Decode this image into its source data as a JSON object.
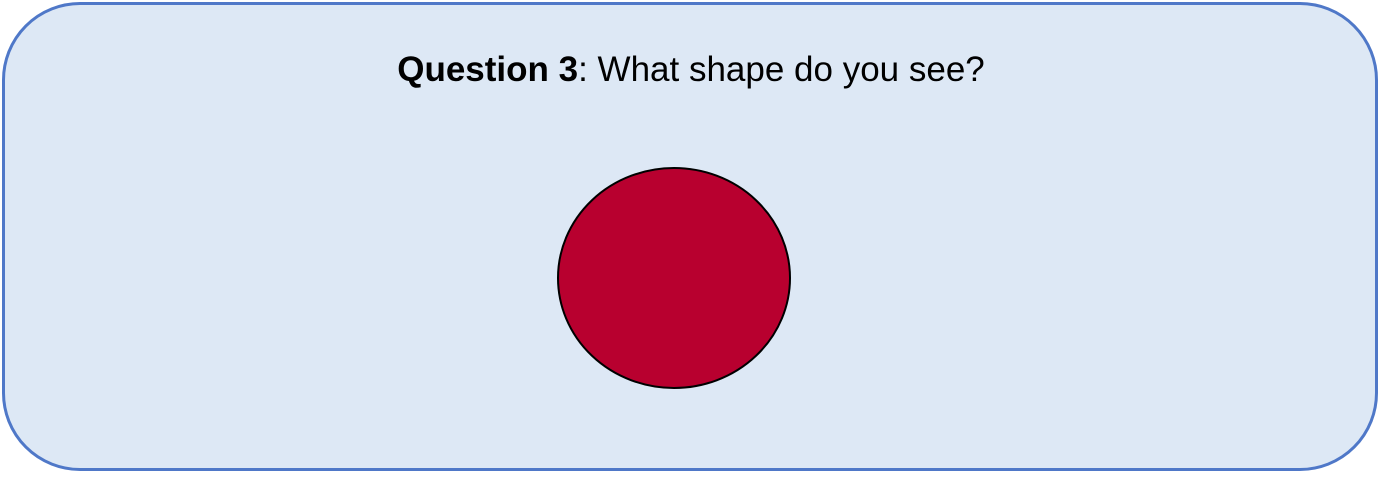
{
  "question": {
    "label_bold": "Question 3",
    "separator": ":",
    "text": " What shape do you see?"
  },
  "shape": {
    "kind": "circle",
    "fill_color": "#b8002f",
    "stroke_color": "#000000"
  },
  "colors": {
    "card_background": "#dde8f5",
    "card_border": "#4f78c8"
  }
}
